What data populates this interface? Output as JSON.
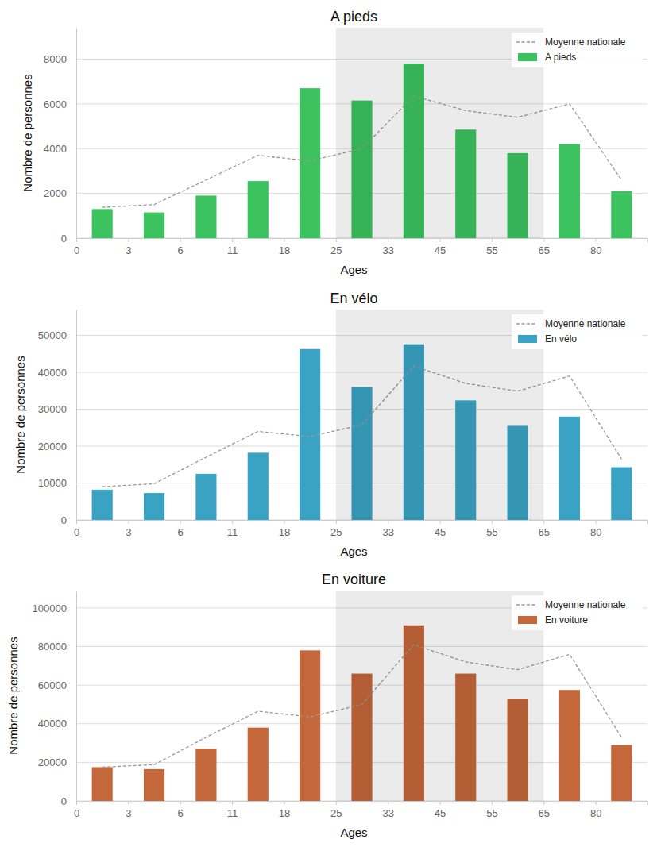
{
  "chart_data": [
    {
      "type": "bar",
      "title": "A pieds",
      "x_label": "Ages",
      "y_label": "Nombre de personnes",
      "bins": [
        0,
        3,
        6,
        11,
        18,
        25,
        33,
        45,
        55,
        65,
        80,
        null
      ],
      "shaded_range": [
        25,
        65
      ],
      "ylim": [
        0,
        9400
      ],
      "yticks": [
        0,
        2000,
        4000,
        6000,
        8000
      ],
      "grid": true,
      "legend": "upper right",
      "series": [
        {
          "name": "Moyenne nationale",
          "type": "line",
          "color": "#999999",
          "line_style": "dashed",
          "values": [
            1380,
            1500,
            2600,
            3700,
            3450,
            4000,
            6350,
            5700,
            5400,
            6000,
            2600
          ]
        },
        {
          "name": "A pieds",
          "type": "bar",
          "color": "#3cc35f",
          "values": [
            1300,
            1150,
            1900,
            2550,
            6700,
            6150,
            7800,
            4850,
            3800,
            4200,
            2100
          ]
        }
      ]
    },
    {
      "type": "bar",
      "title": "En vélo",
      "x_label": "Ages",
      "y_label": "Nombre de personnes",
      "bins": [
        0,
        3,
        6,
        11,
        18,
        25,
        33,
        45,
        55,
        65,
        80,
        null
      ],
      "shaded_range": [
        25,
        65
      ],
      "ylim": [
        0,
        57000
      ],
      "yticks": [
        0,
        10000,
        20000,
        30000,
        40000,
        50000
      ],
      "grid": true,
      "legend": "upper right",
      "series": [
        {
          "name": "Moyenne nationale",
          "type": "line",
          "color": "#999999",
          "line_style": "dashed",
          "values": [
            9000,
            9800,
            17000,
            24000,
            22600,
            25800,
            41700,
            37000,
            34900,
            39000,
            16500
          ]
        },
        {
          "name": "En vélo",
          "type": "bar",
          "color": "#3aa3c4",
          "values": [
            8200,
            7300,
            12500,
            18200,
            46300,
            36000,
            47600,
            32400,
            25500,
            28000,
            14300
          ]
        }
      ]
    },
    {
      "type": "bar",
      "title": "En voiture",
      "x_label": "Ages",
      "y_label": "Nombre de personnes",
      "bins": [
        0,
        3,
        6,
        11,
        18,
        25,
        33,
        45,
        55,
        65,
        80,
        null
      ],
      "shaded_range": [
        25,
        65
      ],
      "ylim": [
        0,
        109000
      ],
      "yticks": [
        0,
        20000,
        40000,
        60000,
        80000,
        100000
      ],
      "grid": true,
      "legend": "upper right",
      "series": [
        {
          "name": "Moyenne nationale",
          "type": "line",
          "color": "#999999",
          "line_style": "dashed",
          "values": [
            17500,
            18800,
            33000,
            46500,
            43500,
            50000,
            81000,
            72000,
            68000,
            76000,
            33000
          ]
        },
        {
          "name": "En voiture",
          "type": "bar",
          "color": "#c4673a",
          "values": [
            17500,
            16500,
            27000,
            38000,
            78000,
            66000,
            91000,
            66000,
            53000,
            57500,
            29000
          ]
        }
      ]
    }
  ]
}
